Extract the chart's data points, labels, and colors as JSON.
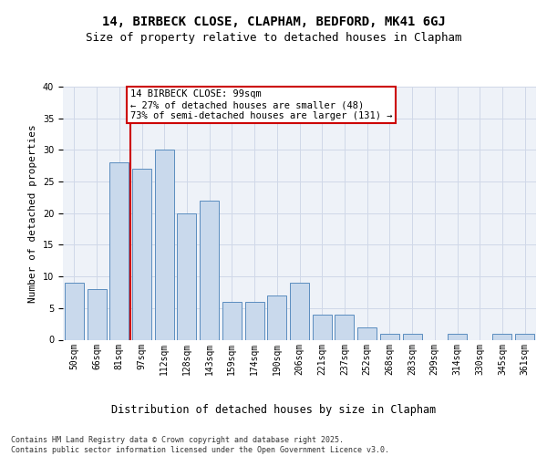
{
  "title": "14, BIRBECK CLOSE, CLAPHAM, BEDFORD, MK41 6GJ",
  "subtitle": "Size of property relative to detached houses in Clapham",
  "xlabel": "Distribution of detached houses by size in Clapham",
  "ylabel": "Number of detached properties",
  "categories": [
    "50sqm",
    "66sqm",
    "81sqm",
    "97sqm",
    "112sqm",
    "128sqm",
    "143sqm",
    "159sqm",
    "174sqm",
    "190sqm",
    "206sqm",
    "221sqm",
    "237sqm",
    "252sqm",
    "268sqm",
    "283sqm",
    "299sqm",
    "314sqm",
    "330sqm",
    "345sqm",
    "361sqm"
  ],
  "values": [
    9,
    8,
    28,
    27,
    30,
    20,
    22,
    6,
    6,
    7,
    9,
    4,
    4,
    2,
    1,
    1,
    0,
    1,
    0,
    1,
    1
  ],
  "bar_color": "#c9d9ec",
  "bar_edge_color": "#5a8dbf",
  "annotation_text": "14 BIRBECK CLOSE: 99sqm\n← 27% of detached houses are smaller (48)\n73% of semi-detached houses are larger (131) →",
  "annotation_box_color": "#ffffff",
  "annotation_box_edge_color": "#cc0000",
  "vline_color": "#cc0000",
  "grid_color": "#d0d8e8",
  "background_color": "#eef2f8",
  "footer_text": "Contains HM Land Registry data © Crown copyright and database right 2025.\nContains public sector information licensed under the Open Government Licence v3.0.",
  "title_fontsize": 10,
  "subtitle_fontsize": 9,
  "xlabel_fontsize": 8.5,
  "ylabel_fontsize": 8,
  "tick_fontsize": 7,
  "annotation_fontsize": 7.5,
  "footer_fontsize": 6,
  "ylim": [
    0,
    40
  ]
}
